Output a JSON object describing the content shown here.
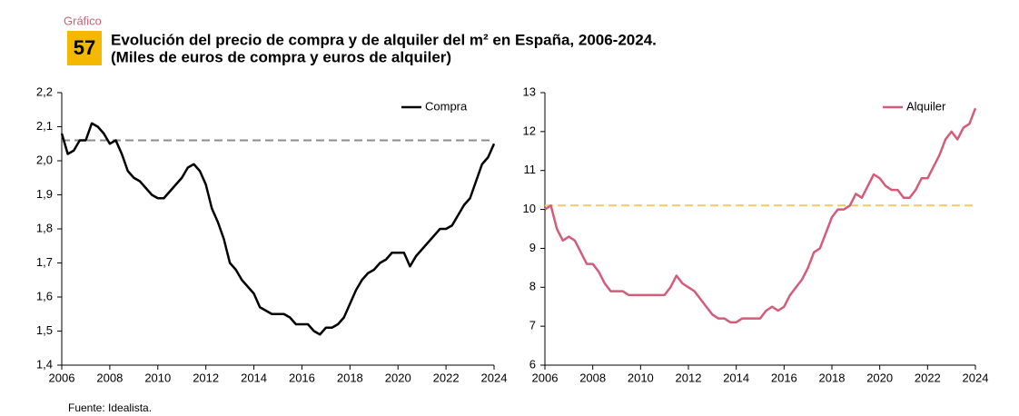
{
  "header": {
    "label": "Gráfico",
    "number": "57",
    "title": "Evolución del precio de compra y de alquiler del m² en España, 2006-2024.",
    "subtitle": "(Miles de euros de compra y euros de alquiler)"
  },
  "source": "Fuente: Idealista.",
  "chart_data": [
    {
      "type": "line",
      "legend": "upper right",
      "x": [
        2006,
        2006.25,
        2006.5,
        2006.75,
        2007,
        2007.25,
        2007.5,
        2007.75,
        2008,
        2008.25,
        2008.5,
        2008.75,
        2009,
        2009.25,
        2009.5,
        2009.75,
        2010,
        2010.25,
        2010.5,
        2010.75,
        2011,
        2011.25,
        2011.5,
        2011.75,
        2012,
        2012.25,
        2012.5,
        2012.75,
        2013,
        2013.25,
        2013.5,
        2013.75,
        2014,
        2014.25,
        2014.5,
        2014.75,
        2015,
        2015.25,
        2015.5,
        2015.75,
        2016,
        2016.25,
        2016.5,
        2016.75,
        2017,
        2017.25,
        2017.5,
        2017.75,
        2018,
        2018.25,
        2018.5,
        2018.75,
        2019,
        2019.25,
        2019.5,
        2019.75,
        2020,
        2020.25,
        2020.5,
        2020.75,
        2021,
        2021.25,
        2021.5,
        2021.75,
        2022,
        2022.25,
        2022.5,
        2022.75,
        2023,
        2023.25,
        2023.5,
        2023.75,
        2024
      ],
      "series": [
        {
          "name": "Compra",
          "color": "#000000",
          "values": [
            2.08,
            2.02,
            2.03,
            2.06,
            2.06,
            2.11,
            2.1,
            2.08,
            2.05,
            2.06,
            2.02,
            1.97,
            1.95,
            1.94,
            1.92,
            1.9,
            1.89,
            1.89,
            1.91,
            1.93,
            1.95,
            1.98,
            1.99,
            1.97,
            1.93,
            1.86,
            1.82,
            1.77,
            1.7,
            1.68,
            1.65,
            1.63,
            1.61,
            1.57,
            1.56,
            1.55,
            1.55,
            1.55,
            1.54,
            1.52,
            1.52,
            1.52,
            1.5,
            1.49,
            1.51,
            1.51,
            1.52,
            1.54,
            1.58,
            1.62,
            1.65,
            1.67,
            1.68,
            1.7,
            1.71,
            1.73,
            1.73,
            1.73,
            1.69,
            1.72,
            1.74,
            1.76,
            1.78,
            1.8,
            1.8,
            1.81,
            1.84,
            1.87,
            1.89,
            1.94,
            1.99,
            2.01,
            2.05
          ]
        }
      ],
      "reference_line": {
        "value": 2.06,
        "color": "#8c8c8c"
      },
      "xlim": [
        2006,
        2024
      ],
      "xticks": [
        2006,
        2008,
        2010,
        2012,
        2014,
        2016,
        2018,
        2020,
        2022,
        2024
      ],
      "ylim": [
        1.4,
        2.2
      ],
      "yticks": [
        {
          "value": 1.4,
          "label": "1,4"
        },
        {
          "value": 1.5,
          "label": "1,5"
        },
        {
          "value": 1.6,
          "label": "1,6"
        },
        {
          "value": 1.7,
          "label": "1,7"
        },
        {
          "value": 1.8,
          "label": "1,8"
        },
        {
          "value": 1.9,
          "label": "1,9"
        },
        {
          "value": 2.0,
          "label": "2,0"
        },
        {
          "value": 2.1,
          "label": "2,1"
        },
        {
          "value": 2.2,
          "label": "2,2"
        }
      ]
    },
    {
      "type": "line",
      "legend": "upper right",
      "x": [
        2006,
        2006.25,
        2006.5,
        2006.75,
        2007,
        2007.25,
        2007.5,
        2007.75,
        2008,
        2008.25,
        2008.5,
        2008.75,
        2009,
        2009.25,
        2009.5,
        2009.75,
        2010,
        2010.25,
        2010.5,
        2010.75,
        2011,
        2011.25,
        2011.5,
        2011.75,
        2012,
        2012.25,
        2012.5,
        2012.75,
        2013,
        2013.25,
        2013.5,
        2013.75,
        2014,
        2014.25,
        2014.5,
        2014.75,
        2015,
        2015.25,
        2015.5,
        2015.75,
        2016,
        2016.25,
        2016.5,
        2016.75,
        2017,
        2017.25,
        2017.5,
        2017.75,
        2018,
        2018.25,
        2018.5,
        2018.75,
        2019,
        2019.25,
        2019.5,
        2019.75,
        2020,
        2020.25,
        2020.5,
        2020.75,
        2021,
        2021.25,
        2021.5,
        2021.75,
        2022,
        2022.25,
        2022.5,
        2022.75,
        2023,
        2023.25,
        2023.5,
        2023.75,
        2024
      ],
      "series": [
        {
          "name": "Alquiler",
          "color": "#d45c78",
          "values": [
            10.0,
            10.1,
            9.5,
            9.2,
            9.3,
            9.2,
            8.9,
            8.6,
            8.6,
            8.4,
            8.1,
            7.9,
            7.9,
            7.9,
            7.8,
            7.8,
            7.8,
            7.8,
            7.8,
            7.8,
            7.8,
            8.0,
            8.3,
            8.1,
            8.0,
            7.9,
            7.7,
            7.5,
            7.3,
            7.2,
            7.2,
            7.1,
            7.1,
            7.2,
            7.2,
            7.2,
            7.2,
            7.4,
            7.5,
            7.4,
            7.5,
            7.8,
            8.0,
            8.2,
            8.5,
            8.9,
            9.0,
            9.4,
            9.8,
            10.0,
            10.0,
            10.1,
            10.4,
            10.3,
            10.6,
            10.9,
            10.8,
            10.6,
            10.5,
            10.5,
            10.3,
            10.3,
            10.5,
            10.8,
            10.8,
            11.1,
            11.4,
            11.8,
            12.0,
            11.8,
            12.1,
            12.2,
            12.6
          ]
        }
      ],
      "reference_line": {
        "value": 10.1,
        "color": "#f2c76e"
      },
      "xlim": [
        2006,
        2024
      ],
      "xticks": [
        2006,
        2008,
        2010,
        2012,
        2014,
        2016,
        2018,
        2020,
        2022,
        2024
      ],
      "ylim": [
        6,
        13
      ],
      "yticks": [
        6,
        7,
        8,
        9,
        10,
        11,
        12,
        13
      ]
    }
  ]
}
